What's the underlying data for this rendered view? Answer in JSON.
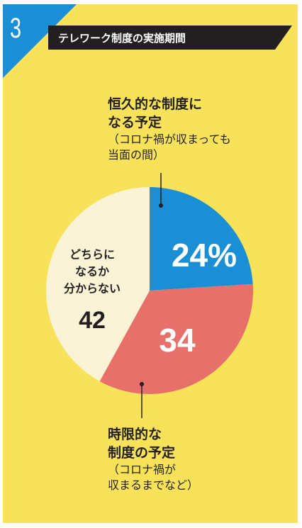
{
  "panel": {
    "number": "3",
    "title": "テレワーク制度の実施期間"
  },
  "colors": {
    "background": "#f8e25a",
    "accent": "#1a8fd6",
    "title_bar": "#231f20"
  },
  "chart_data": {
    "type": "pie",
    "title": "テレワーク制度の実施期間",
    "slices": [
      {
        "name": "恒久的な制度になる予定（コロナ禍が収まっても当面の間）",
        "value": 24,
        "label": "24%",
        "color": "#1a8fd6",
        "label_color": "#ffffff"
      },
      {
        "name": "時限的な制度の予定（コロナ禍が収まるまでなど）",
        "value": 34,
        "label": "34",
        "color": "#e8706a",
        "label_color": "#ffffff"
      },
      {
        "name": "どちらになるか分からない",
        "value": 42,
        "label": "42",
        "color": "#fbf3d6",
        "label_color": "#231f20"
      }
    ]
  },
  "callouts": {
    "top": {
      "main": [
        "恒久的な制度に",
        "なる予定"
      ],
      "sub": [
        "（コロナ禍が収まっても",
        "当面の間）"
      ]
    },
    "bottom": {
      "main": [
        "時限的な",
        "制度の予定"
      ],
      "sub": [
        "（コロナ禍が",
        "収まるまでなど）"
      ]
    },
    "inner_label": [
      "どちらに",
      "なるか",
      "分からない"
    ]
  }
}
